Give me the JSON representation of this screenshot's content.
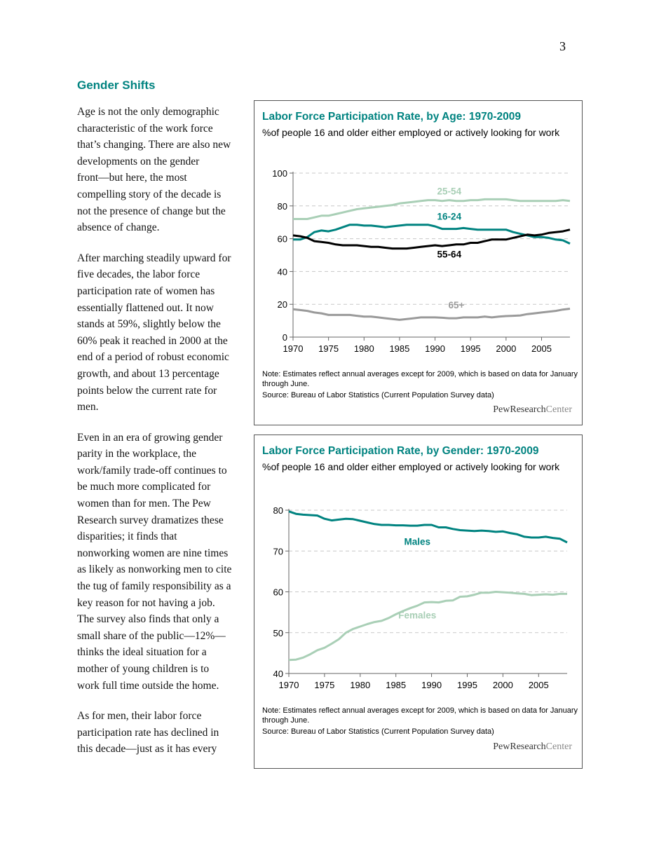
{
  "page_number": "3",
  "heading": "Gender Shifts",
  "paragraphs": [
    [
      "Age is not the only demographic",
      "characteristic of the work force",
      "that’s changing. There are also new",
      "developments on the gender",
      "front—but here, the most",
      "compelling story of the decade is",
      "not the presence of change but the",
      "absence of change."
    ],
    [
      "After marching steadily upward for",
      "five decades, the labor force",
      "participation rate of women has",
      "essentially flattened out. It now",
      "stands at 59%, slightly below the",
      "60% peak it reached in 2000 at the",
      "end of a period of robust economic",
      "growth, and about 13 percentage",
      "points below the current rate for",
      "men."
    ],
    [
      "Even in an era of growing gender",
      "parity in the workplace, the",
      "work/family trade-off continues to",
      "be much more complicated for",
      "women than for men. The Pew",
      "Research survey dramatizes these",
      "disparities; it finds that",
      "nonworking women are nine times",
      "as likely as nonworking men to cite",
      "the tug of family responsibility as a",
      "key reason for not having a job.",
      "The survey also finds that only a",
      "small share of the public—12%—",
      "thinks the ideal situation for a",
      "mother of young children is to",
      "work full time outside the home."
    ],
    [
      "As for men, their labor force",
      "participation rate has declined in",
      "this decade—just as it has every"
    ]
  ],
  "colors": {
    "teal": "#008380",
    "light_green": "#a9cfb6",
    "black": "#000000",
    "gray": "#9a9a9a"
  },
  "logo": {
    "bold": "PewResearch",
    "light": "Center"
  },
  "chart_data": [
    {
      "type": "line",
      "title": "Labor Force Participation Rate, by Age: 1970-2009",
      "subtitle": "%of people 16 and older either employed or actively looking for work",
      "note": "Note: Estimates reflect annual averages except for 2009, which is based on data for January through June.",
      "source": "Source: Bureau of Labor Statistics (Current Population Survey data)",
      "x_start": 1970,
      "x_end": 2009,
      "xticks": [
        "1970",
        "1975",
        "1980",
        "1985",
        "1990",
        "1995",
        "2000",
        "2005"
      ],
      "yticks": [
        "0",
        "20",
        "40",
        "60",
        "80",
        "100"
      ],
      "ylim": [
        0,
        100
      ],
      "grid": "horizontal dashed",
      "series": [
        {
          "name": "25-54",
          "color": "#a9cfb6",
          "label_at": [
            1992,
            87
          ],
          "values": [
            72,
            72,
            72,
            73,
            74,
            74,
            75,
            76,
            77,
            78,
            78.5,
            79,
            79.5,
            80,
            80.5,
            81.5,
            82,
            82.5,
            83,
            83.5,
            83.5,
            83,
            83.5,
            83,
            83,
            83.5,
            83.5,
            84,
            84,
            84,
            84,
            83.5,
            83,
            83,
            83,
            83,
            83,
            83,
            83.5,
            83
          ]
        },
        {
          "name": "16-24",
          "color": "#008380",
          "label_at": [
            1992,
            71.5
          ],
          "values": [
            59.5,
            59.5,
            61,
            64,
            65,
            64.5,
            65.5,
            67,
            68.5,
            68.5,
            68,
            68,
            67.5,
            67,
            67.5,
            68,
            68.5,
            68.5,
            68.5,
            68.5,
            67.5,
            66,
            66,
            66,
            66.5,
            66,
            65.5,
            65.5,
            65.5,
            65.5,
            65.5,
            64,
            63,
            62,
            61,
            61,
            60.5,
            59.5,
            59,
            57
          ]
        },
        {
          "name": "55-64",
          "color": "#000000",
          "label_at": [
            1992,
            48.5
          ],
          "values": [
            62,
            61.5,
            60.5,
            58.5,
            58,
            57.5,
            56.5,
            56,
            56,
            56,
            55.5,
            55,
            55,
            54.5,
            54,
            54,
            54,
            54.5,
            55,
            55.5,
            56,
            55.5,
            56,
            56.5,
            56.5,
            57.5,
            57.5,
            58.5,
            59.5,
            59.5,
            59.5,
            60.5,
            61.5,
            62.5,
            62,
            62.5,
            63.5,
            64,
            64.5,
            65.5
          ]
        },
        {
          "name": "65+",
          "color": "#9a9a9a",
          "label_at": [
            1993,
            17.5
          ],
          "values": [
            17,
            16.5,
            16,
            15,
            14.5,
            13.5,
            13.5,
            13.5,
            13.5,
            13,
            12.5,
            12.5,
            12,
            11.5,
            11,
            10.5,
            11,
            11.5,
            12,
            12,
            12,
            11.8,
            11.5,
            11.5,
            12,
            12,
            12,
            12.5,
            12,
            12.5,
            12.8,
            13,
            13.2,
            14,
            14.5,
            15,
            15.5,
            16,
            16.8,
            17.3
          ]
        }
      ]
    },
    {
      "type": "line",
      "title": "Labor Force Participation Rate, by Gender: 1970-2009",
      "subtitle": "%of people 16 and older either employed or actively looking for work",
      "note": "Note: Estimates reflect annual averages except for 2009, which is based on data for January through June.",
      "source": "Source: Bureau of Labor Statistics (Current Population Survey data)",
      "x_start": 1970,
      "x_end": 2009,
      "xticks": [
        "1970",
        "1975",
        "1980",
        "1985",
        "1990",
        "1995",
        "2000",
        "2005"
      ],
      "yticks": [
        "40",
        "50",
        "60",
        "70",
        "80"
      ],
      "ylim": [
        40,
        80
      ],
      "grid": "horizontal dashed",
      "series": [
        {
          "name": "Males",
          "color": "#008380",
          "label_at": [
            1988,
            71.5
          ],
          "values": [
            79.7,
            79.1,
            78.9,
            78.8,
            78.7,
            77.9,
            77.5,
            77.7,
            77.9,
            77.8,
            77.4,
            77.0,
            76.6,
            76.4,
            76.4,
            76.3,
            76.3,
            76.2,
            76.2,
            76.4,
            76.4,
            75.8,
            75.8,
            75.4,
            75.1,
            75.0,
            74.9,
            75.0,
            74.9,
            74.7,
            74.8,
            74.4,
            74.1,
            73.5,
            73.3,
            73.3,
            73.5,
            73.2,
            73.0,
            72.1
          ]
        },
        {
          "name": "Females",
          "color": "#a9cfb6",
          "label_at": [
            1988,
            53.5
          ],
          "values": [
            43.3,
            43.4,
            43.9,
            44.7,
            45.7,
            46.3,
            47.3,
            48.4,
            50.0,
            50.9,
            51.5,
            52.1,
            52.6,
            52.9,
            53.6,
            54.5,
            55.3,
            56.0,
            56.6,
            57.4,
            57.5,
            57.4,
            57.8,
            57.9,
            58.8,
            58.9,
            59.3,
            59.8,
            59.8,
            60.0,
            59.9,
            59.8,
            59.6,
            59.5,
            59.2,
            59.3,
            59.4,
            59.3,
            59.5,
            59.5
          ]
        }
      ]
    }
  ]
}
